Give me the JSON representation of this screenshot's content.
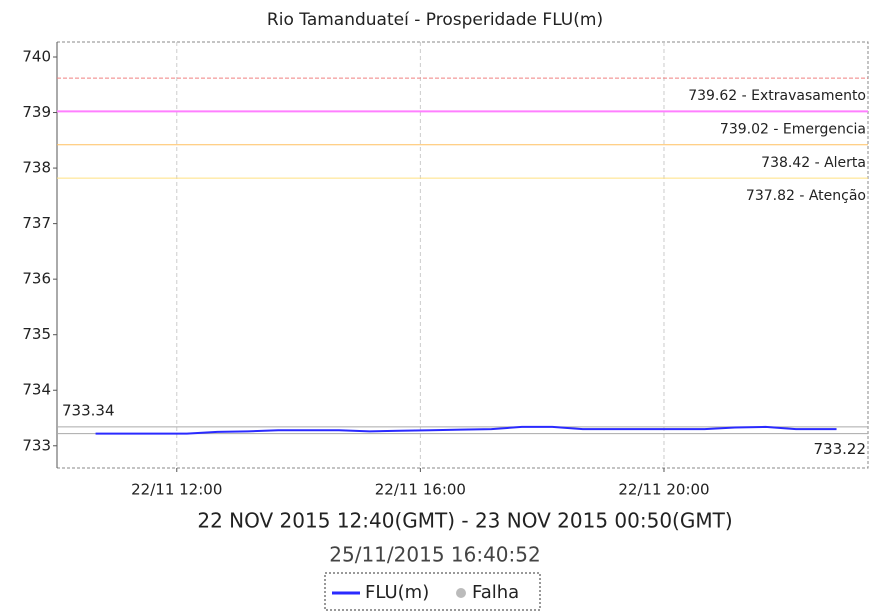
{
  "chart_data": {
    "type": "line",
    "title": "Rio Tamanduateí - Prosperidade FLU(m)",
    "subtitle": "22 NOV 2015 12:40(GMT) - 23 NOV 2015 00:50(GMT)",
    "timestamp": "25/11/2015 16:40:52",
    "x": [
      "22/11 10:40",
      "22/11 11:10",
      "22/11 11:40",
      "22/11 12:10",
      "22/11 12:40",
      "22/11 13:10",
      "22/11 13:40",
      "22/11 14:10",
      "22/11 14:40",
      "22/11 15:10",
      "22/11 15:40",
      "22/11 16:10",
      "22/11 16:40",
      "22/11 17:10",
      "22/11 17:40",
      "22/11 18:10",
      "22/11 18:40",
      "22/11 19:10",
      "22/11 19:40",
      "22/11 20:10",
      "22/11 20:40",
      "22/11 21:10",
      "22/11 21:40",
      "22/11 22:10",
      "22/11 22:40",
      "22/11 22:50"
    ],
    "series": [
      {
        "name": "FLU(m)",
        "color": "#2a2aff",
        "values": [
          733.22,
          733.22,
          733.22,
          733.22,
          733.25,
          733.26,
          733.28,
          733.28,
          733.28,
          733.26,
          733.27,
          733.28,
          733.29,
          733.3,
          733.34,
          733.34,
          733.3,
          733.3,
          733.3,
          733.3,
          733.3,
          733.33,
          733.34,
          733.3,
          733.3,
          733.3
        ]
      }
    ],
    "legend_extra": {
      "name": "Falha",
      "color": "#bbbbbb"
    },
    "thresholds": [
      {
        "value": 739.62,
        "label": "739.62 - Extravasamento",
        "color": "#f08080"
      },
      {
        "value": 739.02,
        "label": "739.02 - Emergencia",
        "color": "#ff7fff"
      },
      {
        "value": 738.42,
        "label": "738.42 - Alerta",
        "color": "#ffc060"
      },
      {
        "value": 737.82,
        "label": "737.82 - Atenção",
        "color": "#ffe080"
      }
    ],
    "max": 733.34,
    "min": 733.22,
    "xlim": [
      "22/11 10:02",
      "22/11 23:21"
    ],
    "xticks": [
      "22/11 12:00",
      "22/11 16:00",
      "22/11 20:00"
    ],
    "ylim": [
      732.6,
      740.27
    ],
    "yticks": [
      733,
      734,
      735,
      736,
      737,
      738,
      739,
      740
    ],
    "grid": true
  }
}
